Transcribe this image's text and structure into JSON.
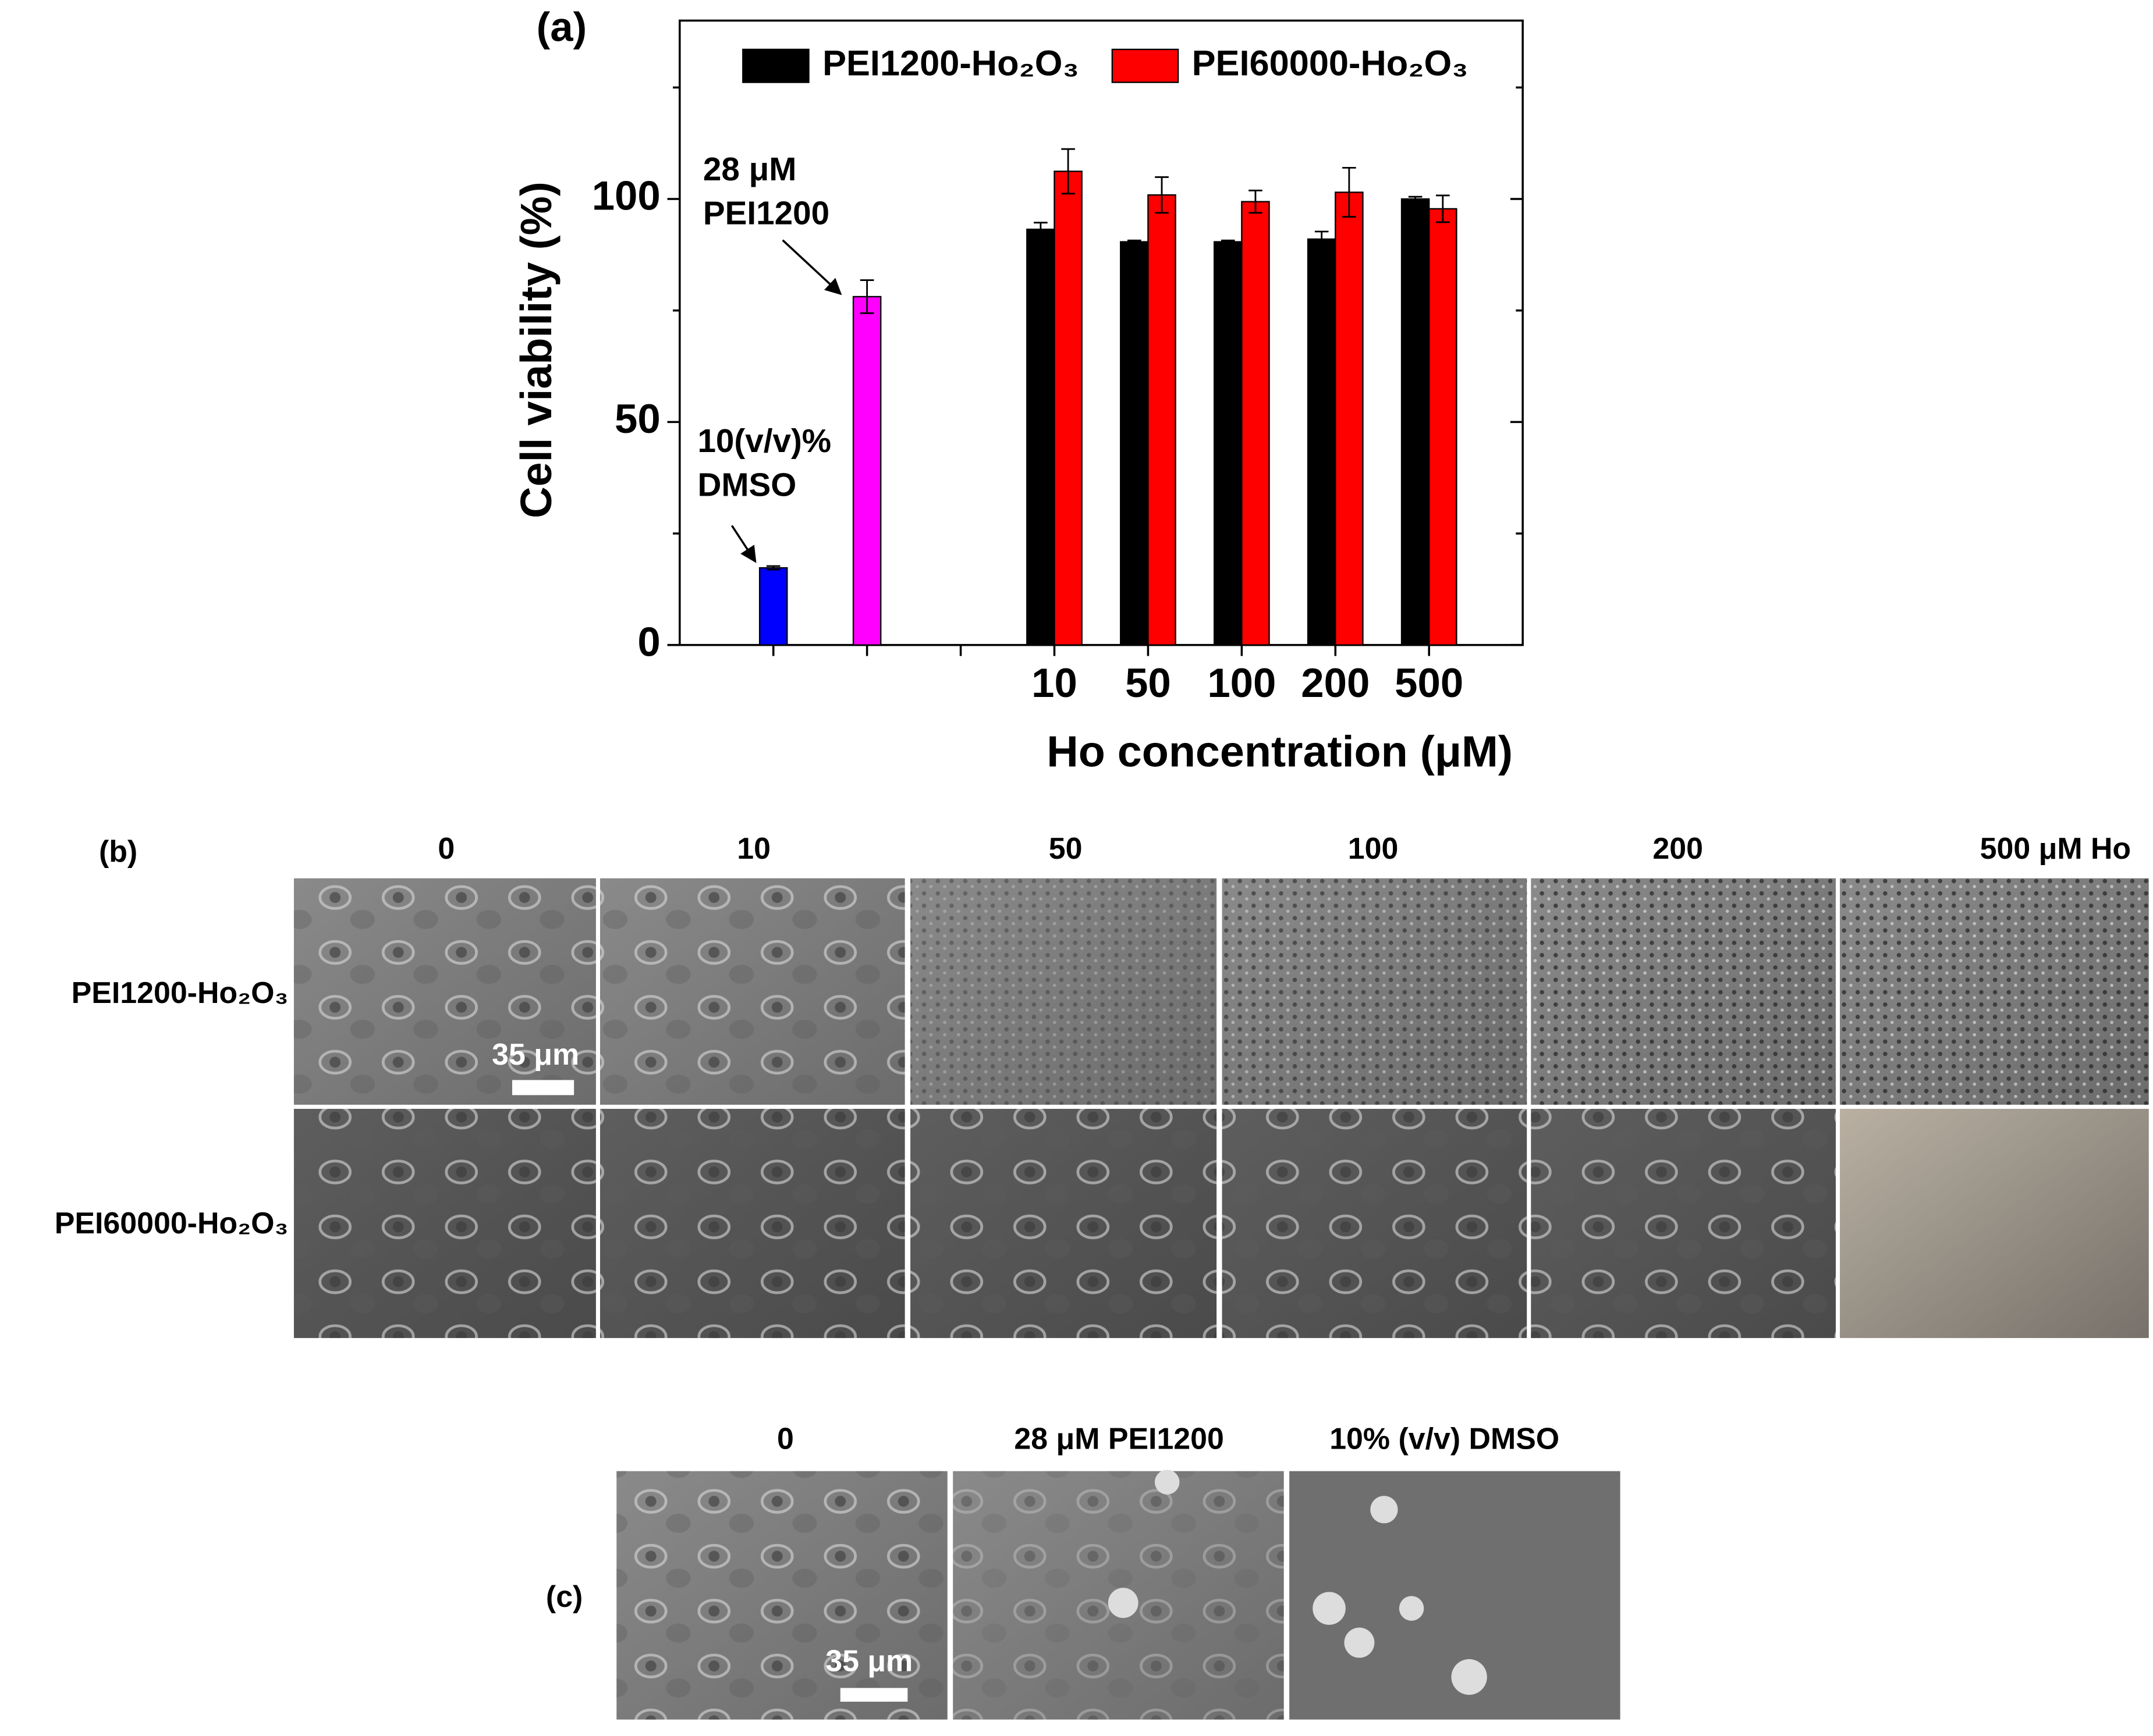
{
  "chart_data": {
    "type": "bar",
    "panel_label": "(a)",
    "x_label": "Ho concentration (μM)",
    "y_label": "Cell viability (%)",
    "categories": [
      null,
      null,
      null,
      "10",
      "50",
      "100",
      "200",
      "500"
    ],
    "series": [
      {
        "colors": [
          "#0000ff",
          "#ff00ff",
          null,
          null,
          null,
          null,
          null,
          null
        ],
        "values": [
          17.3,
          78.1,
          null,
          null,
          null,
          null,
          null,
          null
        ],
        "errors": [
          0.4,
          3.7,
          null,
          null,
          null,
          null,
          null,
          null
        ]
      },
      {
        "name": "PEI1200-Ho₂O₃",
        "color": "#000000",
        "values": [
          null,
          null,
          null,
          93.2,
          90.4,
          90.4,
          91,
          100
        ],
        "errors": [
          null,
          null,
          null,
          1.5,
          0.3,
          0.3,
          1.7,
          0.5
        ]
      },
      {
        "name": "PEI60000-Ho₂O₃",
        "color": "#ff0000",
        "values": [
          null,
          null,
          null,
          106.2,
          100.9,
          99.4,
          101.5,
          97.8
        ],
        "errors": [
          null,
          null,
          null,
          5,
          4,
          2.5,
          5.5,
          3
        ]
      }
    ],
    "annotations": [
      {
        "lines": [
          "28 μM",
          "PEI1200"
        ]
      },
      {
        "lines": [
          "10(v/v)%",
          "DMSO"
        ]
      }
    ],
    "ylim": [
      0,
      140
    ],
    "yticks": [
      0,
      50,
      100
    ],
    "yminorticks": [
      25,
      75,
      125
    ],
    "legend": "top",
    "grid": false
  },
  "panel_b": {
    "label": "(b)",
    "columns": [
      "0",
      "10",
      "50",
      "100",
      "200",
      "500 μM Ho"
    ],
    "rows": [
      "PEI1200-Ho₂O₃",
      "PEI60000-Ho₂O₃"
    ],
    "scale_bar": "35 μm"
  },
  "panel_c": {
    "label": "(c)",
    "columns": [
      "0",
      "28 μM PEI1200",
      "10% (v/v) DMSO"
    ],
    "scale_bar": "35 μm"
  }
}
